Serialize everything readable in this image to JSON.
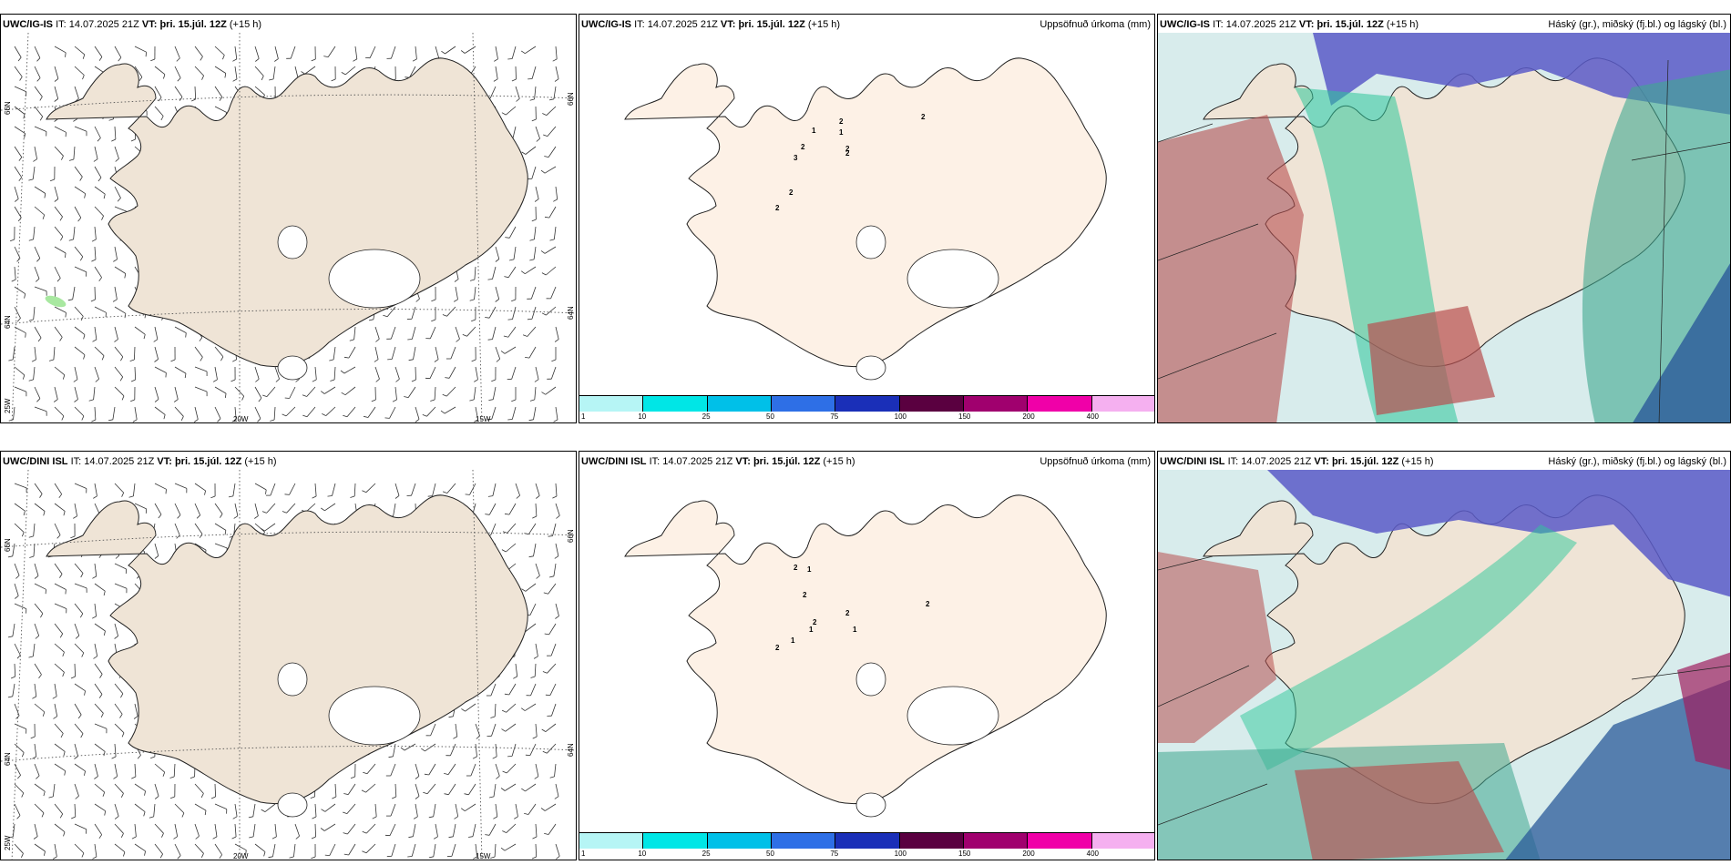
{
  "rows": [
    {
      "model": "UWC/IG-IS",
      "it_label": "IT:",
      "it_value": "14.07.2025 21Z",
      "vt_label": "VT:",
      "vt_value": "þri. 15.júl. 12Z",
      "lead": "(+15 h)",
      "precip_title": "Uppsöfnuð úrkoma (mm)",
      "cloud_title": "Háský (gr.), miðský (fj.bl.) og lágský (bl.)",
      "precip_numbers": [
        "1",
        "2",
        "3",
        "2",
        "2",
        "2",
        "1",
        "2",
        "2",
        "2"
      ]
    },
    {
      "model": "UWC/DINI ISL",
      "it_label": "IT:",
      "it_value": "14.07.2025 21Z",
      "vt_label": "VT:",
      "vt_value": "þri. 15.júl. 12Z",
      "lead": "(+15 h)",
      "precip_title": "Uppsöfnuð úrkoma (mm)",
      "cloud_title": "Háský (gr.), miðský (fj.bl.) og lágský (bl.)",
      "precip_numbers": [
        "2",
        "2",
        "1",
        "2",
        "2",
        "1",
        "1",
        "2",
        "1",
        "2"
      ]
    }
  ],
  "grid_labels": {
    "lat_north": "66N",
    "lat_south": "64N",
    "lon_20": "20W",
    "lon_15": "15W",
    "lon_25": "25W"
  },
  "colorbar": {
    "ticks": [
      "1",
      "10",
      "25",
      "50",
      "75",
      "100",
      "150",
      "200",
      "400"
    ],
    "colors": [
      "#b6f5f5",
      "#00e6e6",
      "#00c0e8",
      "#2e6fe6",
      "#1a2fb8",
      "#5a0040",
      "#a0006e",
      "#f000a8",
      "#f5b0f0"
    ]
  },
  "colors": {
    "land_wind": "#efe4d6",
    "land_precip": "#fdf1e6",
    "high_cloud": "#5a5ac8",
    "mid_cloud": "#3fa890",
    "low_cloud": "#b85050"
  }
}
